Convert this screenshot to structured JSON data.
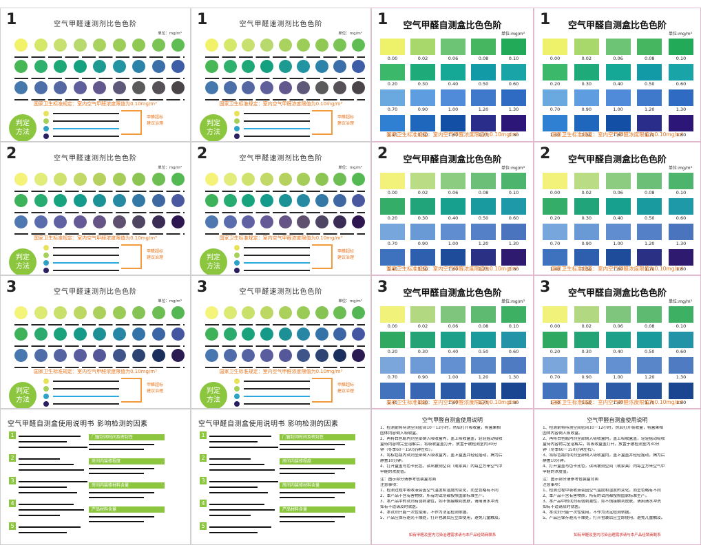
{
  "strip_cards": {
    "cards": [
      {
        "num": "1",
        "title": "空气甲醛速测剂比色色阶",
        "unit": "单位：mg/m³",
        "rule": "国家卫生标准规定：室内空气甲醛浓度限值为0.10mg/m³",
        "judge": "判定\n方法",
        "bracket_text": "甲醛超标\n建议治理",
        "rows": [
          [
            "#f2f26a",
            "#d6e86a",
            "#c8e070",
            "#b7d96d",
            "#a9d25f",
            "#9ccd58",
            "#8fc954",
            "#79c454",
            "#5fbd53"
          ],
          [
            "#47b755",
            "#2fb06d",
            "#1fa877",
            "#14a17f",
            "#1d9b92",
            "#2394a2",
            "#2c83a9",
            "#3b6fa9",
            "#3d5ea6"
          ],
          [
            "#4578ad",
            "#4d6fa9",
            "#5467a2",
            "#5f5f9b",
            "#62588d",
            "#5e5879",
            "#5b5b5c",
            "#555156",
            "#4a4549"
          ]
        ]
      },
      {
        "num": "1",
        "title": "空气甲醛速测剂比色色阶",
        "unit": "单位：mg/m³",
        "rule": "国家卫生标准规定：室内空气甲醛浓度限值为0.10mg/m³",
        "judge": "判定\n方法",
        "bracket_text": "甲醛超标\n建议治理",
        "rows": [
          [
            "#f2f26a",
            "#d6e86a",
            "#c8e070",
            "#b7d96d",
            "#a9d25f",
            "#9ccd58",
            "#8fc954",
            "#79c454",
            "#5fbd53"
          ],
          [
            "#47b755",
            "#2fb06d",
            "#1fa877",
            "#14a17f",
            "#1d9b92",
            "#2394a2",
            "#2c83a9",
            "#3b6fa9",
            "#3d5ea6"
          ],
          [
            "#4578ad",
            "#4d6fa9",
            "#5467a2",
            "#5f5f9b",
            "#62588d",
            "#5e5879",
            "#5b5b5c",
            "#555156",
            "#4a4549"
          ]
        ]
      },
      {
        "num": "2",
        "title": "空气甲醛速测剂比色色阶",
        "unit": "单位：mg/m³",
        "rule": "国家卫生标准规定：室内空气甲醛浓度限值为0.10mg/m³",
        "judge": "判定\n方法",
        "bracket_text": "甲醛超标\n建议治理",
        "rows": [
          [
            "#f5f27a",
            "#e2ec7a",
            "#cfe26e",
            "#c2d867",
            "#b6d15e",
            "#a6cc59",
            "#8dc554",
            "#6fbe54",
            "#54b853"
          ],
          [
            "#3eb25a",
            "#28ab70",
            "#17a37e",
            "#159b8b",
            "#1c9297",
            "#2889a3",
            "#3479a6",
            "#3f68a3",
            "#4a58a0"
          ],
          [
            "#4f77b0",
            "#5a6cab",
            "#5f61a3",
            "#665a96",
            "#655485",
            "#5f506f",
            "#4d4562",
            "#3b2c56",
            "#2e1650"
          ]
        ]
      },
      {
        "num": "2",
        "title": "空气甲醛速测剂比色色阶",
        "unit": "单位：mg/m³",
        "rule": "国家卫生标准规定：室内空气甲醛浓度限值为0.10mg/m³",
        "judge": "判定\n方法",
        "bracket_text": "甲醛超标\n建议治理",
        "rows": [
          [
            "#f5f27a",
            "#e2ec7a",
            "#cfe26e",
            "#c2d867",
            "#b6d15e",
            "#a6cc59",
            "#8dc554",
            "#6fbe54",
            "#54b853"
          ],
          [
            "#3eb25a",
            "#28ab70",
            "#17a37e",
            "#159b8b",
            "#1c9297",
            "#2889a3",
            "#3479a6",
            "#3f68a3",
            "#4a58a0"
          ],
          [
            "#4f77b0",
            "#5a6cab",
            "#5f61a3",
            "#665a96",
            "#655485",
            "#5f506f",
            "#4d4562",
            "#3b2c56",
            "#2e1650"
          ]
        ]
      },
      {
        "num": "3",
        "title": "空气甲醛速测剂比色色阶",
        "unit": "单位：mg/m³",
        "rule": "国家卫生标准规定：室内空气甲醛浓度限值为0.10mg/m³",
        "judge": "判定\n方法",
        "bracket_text": "甲醛超标\n建议治理",
        "rows": [
          [
            "#f4f47a",
            "#dcea74",
            "#c9e06a",
            "#bcd863",
            "#abd15c",
            "#9acb57",
            "#85c454",
            "#6cbd54",
            "#55b753"
          ],
          [
            "#3fb159",
            "#2baa6e",
            "#1aa27c",
            "#159a88",
            "#1d9096",
            "#2786a3",
            "#3373a7",
            "#3c65a5",
            "#4456a2"
          ],
          [
            "#4876af",
            "#4f6ca9",
            "#5563a3",
            "#5a5d9d",
            "#555898",
            "#3f5489",
            "#2c4374",
            "#1a2f5c",
            "#2a1b53"
          ]
        ]
      },
      {
        "num": "3",
        "title": "空气甲醛速测剂比色色阶",
        "unit": "单位：mg/m³",
        "rule": "国家卫生标准规定：室内空气甲醛浓度限值为0.10mg/m³",
        "judge": "判定\n方法",
        "bracket_text": "甲醛超标\n建议治理",
        "rows": [
          [
            "#f4f47a",
            "#dcea74",
            "#c9e06a",
            "#bcd863",
            "#abd15c",
            "#9acb57",
            "#85c454",
            "#6cbd54",
            "#55b753"
          ],
          [
            "#3fb159",
            "#2baa6e",
            "#1aa27c",
            "#159a88",
            "#1d9096",
            "#2786a3",
            "#3373a7",
            "#3c65a5",
            "#4456a2"
          ],
          [
            "#4876af",
            "#4f6ca9",
            "#5563a3",
            "#5a5d9d",
            "#555898",
            "#3f5489",
            "#2c4374",
            "#1a2f5c",
            "#2a1b53"
          ]
        ]
      }
    ],
    "key_colors": [
      "#e8e25a",
      "#a5d05a",
      "#2ca3c7",
      "#2b1f62"
    ]
  },
  "swatch_cards": {
    "cards": [
      {
        "num": "1",
        "title": "空气甲醛自测盒比色色阶",
        "unit": "单位:mg/m³",
        "rule": "国家卫生标准规定：室内空气甲醛浓度限值为0.10mg/m³",
        "rows": [
          {
            "colors": [
              "#eef26a",
              "#a8d86c",
              "#6cc474",
              "#46b660",
              "#22aa58"
            ],
            "labels": [
              "0.00",
              "0.02",
              "0.06",
              "0.08",
              "0.10"
            ]
          },
          {
            "colors": [
              "#3cb86a",
              "#1faa7a",
              "#16a896",
              "#129aa6",
              "#19a5a8"
            ],
            "labels": [
              "0.20",
              "0.30",
              "0.40",
              "0.50",
              "0.60"
            ]
          },
          {
            "colors": [
              "#6aa9e0",
              "#5d9de0",
              "#4f8bd8",
              "#3f79cc",
              "#2f6bc2"
            ],
            "labels": [
              "0.70",
              "0.90",
              "1.00",
              "1.20",
              "1.30"
            ]
          },
          {
            "colors": [
              "#2f7fd3",
              "#1f67bd",
              "#134fa4",
              "#2a2d8a",
              "#2c1678"
            ],
            "labels": [
              "1.40",
              "1.50",
              "1.60",
              "1.70",
              "1.80"
            ]
          }
        ]
      },
      {
        "num": "1",
        "title": "空气甲醛自测盒比色色阶",
        "unit": "单位:mg/m³",
        "rule": "国家卫生标准规定：室内空气甲醛浓度限值为0.10mg/m³",
        "rows": [
          {
            "colors": [
              "#eef26a",
              "#a8d86c",
              "#6cc474",
              "#46b660",
              "#22aa58"
            ],
            "labels": [
              "0.00",
              "0.02",
              "0.06",
              "0.08",
              "0.10"
            ]
          },
          {
            "colors": [
              "#3cb86a",
              "#1faa7a",
              "#16a896",
              "#129aa6",
              "#19a5a8"
            ],
            "labels": [
              "0.20",
              "0.30",
              "0.40",
              "0.50",
              "0.60"
            ]
          },
          {
            "colors": [
              "#6aa9e0",
              "#5d9de0",
              "#4f8bd8",
              "#3f79cc",
              "#2f6bc2"
            ],
            "labels": [
              "0.70",
              "0.90",
              "1.00",
              "1.20",
              "1.30"
            ]
          },
          {
            "colors": [
              "#2f7fd3",
              "#1f67bd",
              "#134fa4",
              "#2a2d8a",
              "#2c1678"
            ],
            "labels": [
              "1.40",
              "1.50",
              "1.60",
              "1.70",
              "1.80"
            ]
          }
        ]
      },
      {
        "num": "2",
        "title": "空气甲醛自测盒比色色阶",
        "unit": "单位:mg/m³",
        "rule": "国家卫生标准规定：室内空气甲醛浓度限值为0.10mg/m³",
        "rows": [
          {
            "colors": [
              "#f2f27a",
              "#b9dc84",
              "#8ccc80",
              "#6cbf76",
              "#4cb46c"
            ],
            "labels": [
              "0.00",
              "0.02",
              "0.06",
              "0.08",
              "0.10"
            ]
          },
          {
            "colors": [
              "#34ad68",
              "#22a47a",
              "#17a08e",
              "#199a9e",
              "#1d99a8"
            ],
            "labels": [
              "0.20",
              "0.30",
              "0.40",
              "0.50",
              "0.60"
            ]
          },
          {
            "colors": [
              "#76a6dc",
              "#6a9ad6",
              "#5f8dcf",
              "#5380c6",
              "#4a74bd"
            ],
            "labels": [
              "0.70",
              "0.90",
              "1.00",
              "1.20",
              "1.30"
            ]
          },
          {
            "colors": [
              "#3f72be",
              "#2d5fae",
              "#1e4c9a",
              "#2a3184",
              "#2e1a6e"
            ],
            "labels": [
              "1.40",
              "1.50",
              "1.60",
              "1.70",
              "1.80"
            ]
          }
        ]
      },
      {
        "num": "2",
        "title": "空气甲醛自测盒比色色阶",
        "unit": "单位:mg/m³",
        "rule": "国家卫生标准规定：室内空气甲醛浓度限值为0.10mg/m³",
        "rows": [
          {
            "colors": [
              "#f2f27a",
              "#b9dc84",
              "#8ccc80",
              "#6cbf76",
              "#4cb46c"
            ],
            "labels": [
              "0.00",
              "0.02",
              "0.06",
              "0.08",
              "0.10"
            ]
          },
          {
            "colors": [
              "#34ad68",
              "#22a47a",
              "#17a08e",
              "#199a9e",
              "#1d99a8"
            ],
            "labels": [
              "0.20",
              "0.30",
              "0.40",
              "0.50",
              "0.60"
            ]
          },
          {
            "colors": [
              "#76a6dc",
              "#6a9ad6",
              "#5f8dcf",
              "#5380c6",
              "#4a74bd"
            ],
            "labels": [
              "0.70",
              "0.90",
              "1.00",
              "1.20",
              "1.30"
            ]
          },
          {
            "colors": [
              "#3f72be",
              "#2d5fae",
              "#1e4c9a",
              "#2a3184",
              "#2e1a6e"
            ],
            "labels": [
              "1.40",
              "1.50",
              "1.60",
              "1.70",
              "1.80"
            ]
          }
        ]
      },
      {
        "num": "3",
        "title": "空气甲醛自测盒比色色阶",
        "unit": "单位:mg/m³",
        "rule": "国家卫生标准规定：室内空气甲醛浓度限值为0.10mg/m³",
        "rows": [
          {
            "colors": [
              "#f0f27a",
              "#b2d882",
              "#7fc57e",
              "#5eba70",
              "#3eb064"
            ],
            "labels": [
              "0.00",
              "0.02",
              "0.06",
              "0.08",
              "0.10"
            ]
          },
          {
            "colors": [
              "#2fa862",
              "#24a476",
              "#1ca08a",
              "#1b9a9c",
              "#2394a8"
            ],
            "labels": [
              "0.20",
              "0.30",
              "0.40",
              "0.50",
              "0.60"
            ]
          },
          {
            "colors": [
              "#7aa6dc",
              "#6e9ad6",
              "#6390d0",
              "#5886c9",
              "#4e7bc1"
            ],
            "labels": [
              "0.70",
              "0.90",
              "1.00",
              "1.20",
              "1.30"
            ]
          },
          {
            "colors": [
              "#4473bd",
              "#3866b2",
              "#2c5aa6",
              "#23509b",
              "#1a4590"
            ],
            "labels": [
              "1.40",
              "1.50",
              "1.60",
              "1.70",
              "1.80"
            ]
          }
        ]
      },
      {
        "num": "3",
        "title": "空气甲醛自测盒比色色阶",
        "unit": "单位:mg/m³",
        "rule": "国家卫生标准规定：室内空气甲醛浓度限值为0.10mg/m³",
        "rows": [
          {
            "colors": [
              "#f0f27a",
              "#b2d882",
              "#7fc57e",
              "#5eba70",
              "#3eb064"
            ],
            "labels": [
              "0.00",
              "0.02",
              "0.06",
              "0.08",
              "0.10"
            ]
          },
          {
            "colors": [
              "#2fa862",
              "#24a476",
              "#1ca08a",
              "#1b9a9c",
              "#2394a8"
            ],
            "labels": [
              "0.20",
              "0.30",
              "0.40",
              "0.50",
              "0.60"
            ]
          },
          {
            "colors": [
              "#7aa6dc",
              "#6e9ad6",
              "#6390d0",
              "#5886c9",
              "#4e7bc1"
            ],
            "labels": [
              "0.70",
              "0.90",
              "1.00",
              "1.20",
              "1.30"
            ]
          },
          {
            "colors": [
              "#4473bd",
              "#3866b2",
              "#2c5aa6",
              "#23509b",
              "#1a4590"
            ],
            "labels": [
              "1.40",
              "1.50",
              "1.60",
              "1.70",
              "1.80"
            ]
          }
        ]
      }
    ]
  },
  "manual_cards": {
    "title": "空气甲醛自测盒使用说明书",
    "title2": "影响检测的因素",
    "steps": [
      "1",
      "2",
      "3",
      "4",
      "5"
    ],
    "factors": [
      "门窗封闭时间及密封性",
      "房间内装修程度",
      "房间内装修材料含量",
      "产品材料含量"
    ]
  },
  "instruction_cards": {
    "title": "空气甲醛自测盒使用说明",
    "lines": [
      "1、检测前将待测空间密闭10－12小时，然后打开吸收盒，将盒果相",
      "   固体内容倒入吸收盒。",
      "2、再将白色瓶内剂全部倒入吸收盒内，盖上吸收盒盖，轻轻摇动吸收",
      "   盒待内容物完全溶解后，将吸收盒盖打开，放置于被检测室内30分",
      "   钟（冬季60－150分钟左右）。",
      "3、将棕色瓶内试剂全部倒入吸收盒内，盖上盒盖并轻轻摇动，揭为后",
      "   静置10分钟。",
      "4、打开盒盖与色卡比色，读出被测空间（或家具）内每立方米空气中",
      "   甲醛的浓度值。"
    ],
    "note_title": "注：图示部分请参考包装盒背面",
    "notes_head": "注意事项：",
    "notes": [
      "1、检测过程中吸收液会因空气温度和湿度的变化，而呈色略有不同",
      "2、本产品不含有害物质，所有的试剂都按照国家标准生产。",
      "3、本产品中的试剂有弱刺激性，如不慎接触到皮肤，请用清水冲洗",
      "   如有不适请及时就医。",
      "4、本试剂只能一次性使用，不作为法定检测依据。",
      "5、产品应保存避光干燥处，打开包装后应立即使用，避免儿童触及。"
    ],
    "footer": "如有甲醛及室内污染治理需求请与本产品经销商联系"
  }
}
